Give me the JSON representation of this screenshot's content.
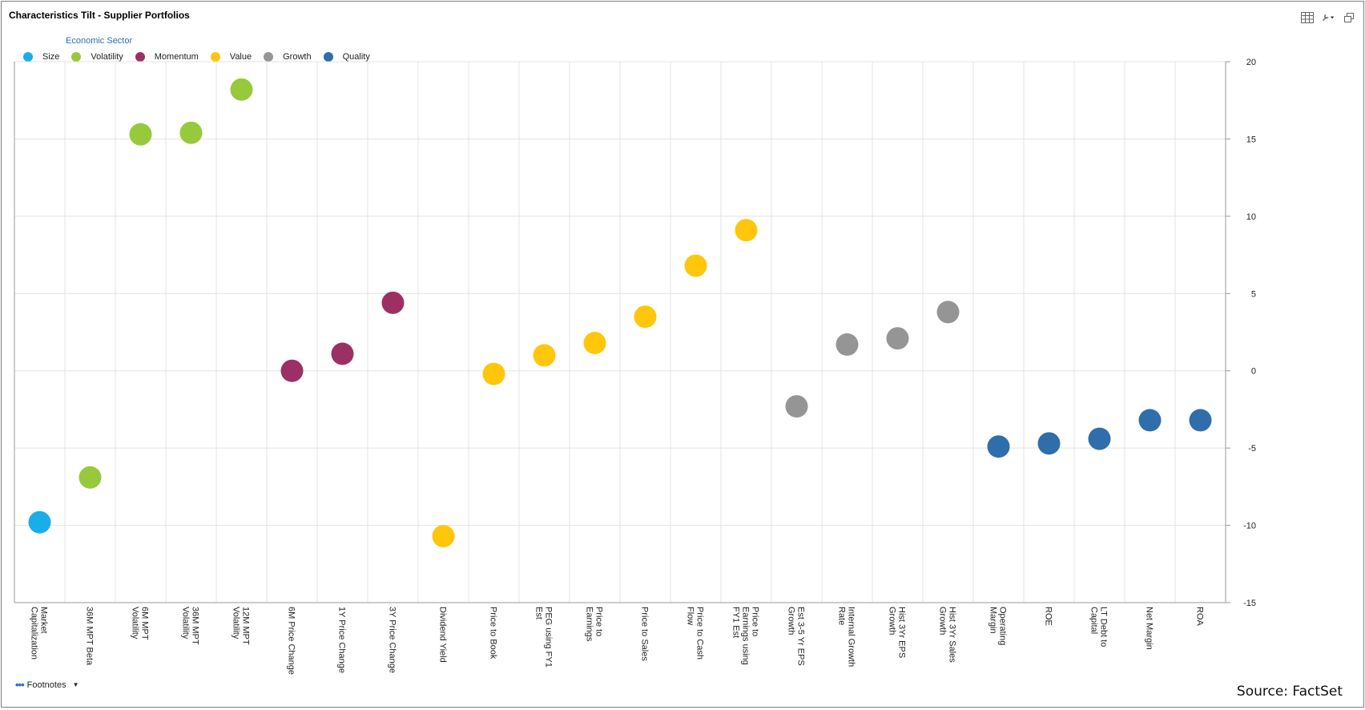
{
  "title": "Characteristics Tilt - Supplier Portfolios",
  "toolbar": {
    "icons": [
      "grid-icon",
      "wrench-icon",
      "restore-window-icon"
    ]
  },
  "footnotes_label": "Footnotes",
  "source": "Source: FactSet",
  "chart_data": {
    "type": "scatter",
    "title": "Characteristics Tilt - Supplier Portfolios",
    "legend_title": "Economic Sector",
    "legend_position": "top-left",
    "grid": true,
    "ylim": [
      -15,
      20
    ],
    "yticks": [
      20,
      15,
      10,
      5,
      0,
      -5,
      -10,
      -15
    ],
    "categories": [
      "Market Capitalization",
      "36M MPT Beta",
      "6M MPT Volatility",
      "36M MPT Volatility",
      "12M MPT Volatility",
      "6M Price Change",
      "1Y Price Change",
      "3Y Price Change",
      "Dividend Yield",
      "Price to Book",
      "PEG using FY1 Est",
      "Price to Earnings",
      "Price to Sales",
      "Price to Cash Flow",
      "Price to Earnings using FY1 Est",
      "Est 3-5 Yr EPS Growth",
      "Internal Growth Rate",
      "Hist 3Yr EPS Growth",
      "Hist 3Yr Sales Growth",
      "Operating Margin",
      "ROE",
      "LT Debt to Capital",
      "Net Margin",
      "ROA"
    ],
    "series": [
      {
        "name": "Size",
        "color": "#1aaee8",
        "points": [
          {
            "x": "Market Capitalization",
            "y": -9.8
          }
        ]
      },
      {
        "name": "Volatility",
        "color": "#97c93d",
        "points": [
          {
            "x": "36M MPT Beta",
            "y": -6.9
          },
          {
            "x": "6M MPT Volatility",
            "y": 15.3
          },
          {
            "x": "36M MPT Volatility",
            "y": 15.4
          },
          {
            "x": "12M MPT Volatility",
            "y": 18.2
          }
        ]
      },
      {
        "name": "Momentum",
        "color": "#9c3064",
        "points": [
          {
            "x": "6M Price Change",
            "y": 0.0
          },
          {
            "x": "1Y Price Change",
            "y": 1.1
          },
          {
            "x": "3Y Price Change",
            "y": 4.4
          }
        ]
      },
      {
        "name": "Value",
        "color": "#ffc60c",
        "points": [
          {
            "x": "Dividend Yield",
            "y": -10.7
          },
          {
            "x": "Price to Book",
            "y": -0.2
          },
          {
            "x": "PEG using FY1 Est",
            "y": 1.0
          },
          {
            "x": "Price to Earnings",
            "y": 1.8
          },
          {
            "x": "Price to Sales",
            "y": 3.5
          },
          {
            "x": "Price to Cash Flow",
            "y": 6.8
          },
          {
            "x": "Price to Earnings using FY1 Est",
            "y": 9.1
          }
        ]
      },
      {
        "name": "Growth",
        "color": "#959595",
        "points": [
          {
            "x": "Est 3-5 Yr EPS Growth",
            "y": -2.3
          },
          {
            "x": "Internal Growth Rate",
            "y": 1.7
          },
          {
            "x": "Hist 3Yr EPS Growth",
            "y": 2.1
          },
          {
            "x": "Hist 3Yr Sales Growth",
            "y": 3.8
          }
        ]
      },
      {
        "name": "Quality",
        "color": "#2f6eab",
        "points": [
          {
            "x": "Operating Margin",
            "y": -4.9
          },
          {
            "x": "ROE",
            "y": -4.7
          },
          {
            "x": "LT Debt to Capital",
            "y": -4.4
          },
          {
            "x": "Net Margin",
            "y": -3.2
          },
          {
            "x": "ROA",
            "y": -3.2
          }
        ]
      }
    ]
  }
}
